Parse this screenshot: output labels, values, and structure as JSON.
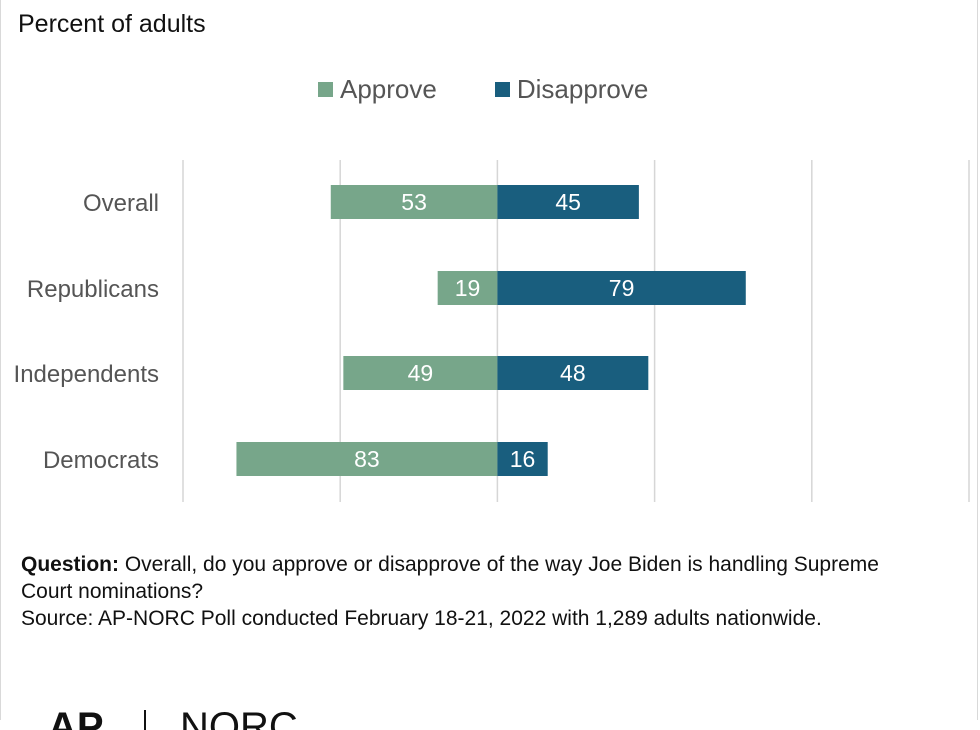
{
  "header": {
    "subtitle": "Percent of adults"
  },
  "legend": [
    {
      "label": "Approve",
      "color": "#77a68a"
    },
    {
      "label": "Disapprove",
      "color": "#195e7e"
    }
  ],
  "chart_data": {
    "type": "bar",
    "orientation": "horizontal-diverging",
    "categories": [
      "Overall",
      "Republicans",
      "Independents",
      "Democrats"
    ],
    "series": [
      {
        "name": "Approve",
        "values": [
          53,
          19,
          49,
          83
        ],
        "color": "#77a68a",
        "direction": "left"
      },
      {
        "name": "Disapprove",
        "values": [
          45,
          79,
          48,
          16
        ],
        "color": "#195e7e",
        "direction": "right"
      }
    ],
    "xlim": [
      -100,
      150
    ],
    "gridlines": [
      -100,
      -50,
      0,
      50,
      100,
      150
    ],
    "grid": true,
    "legend_position": "top-center"
  },
  "footer": {
    "question_label": "Question:",
    "question_text": "Overall, do you approve or disapprove of the way Joe Biden is handling Supreme Court nominations?",
    "source": "Source: AP-NORC Poll conducted February 18-21, 2022 with 1,289 adults nationwide."
  },
  "logo": {
    "text": "AP | NORC"
  }
}
